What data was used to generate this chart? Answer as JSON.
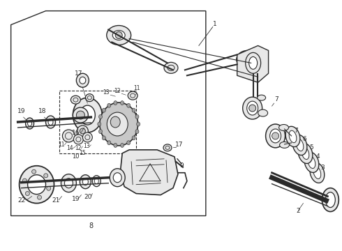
{
  "white": "#ffffff",
  "black": "#000000",
  "figsize": [
    4.9,
    3.6
  ],
  "dpi": 100,
  "line_color": "#2a2a2a",
  "fill_light": "#e8e8e8",
  "fill_mid": "#c8c8c8",
  "fill_dark": "#a0a0a0"
}
